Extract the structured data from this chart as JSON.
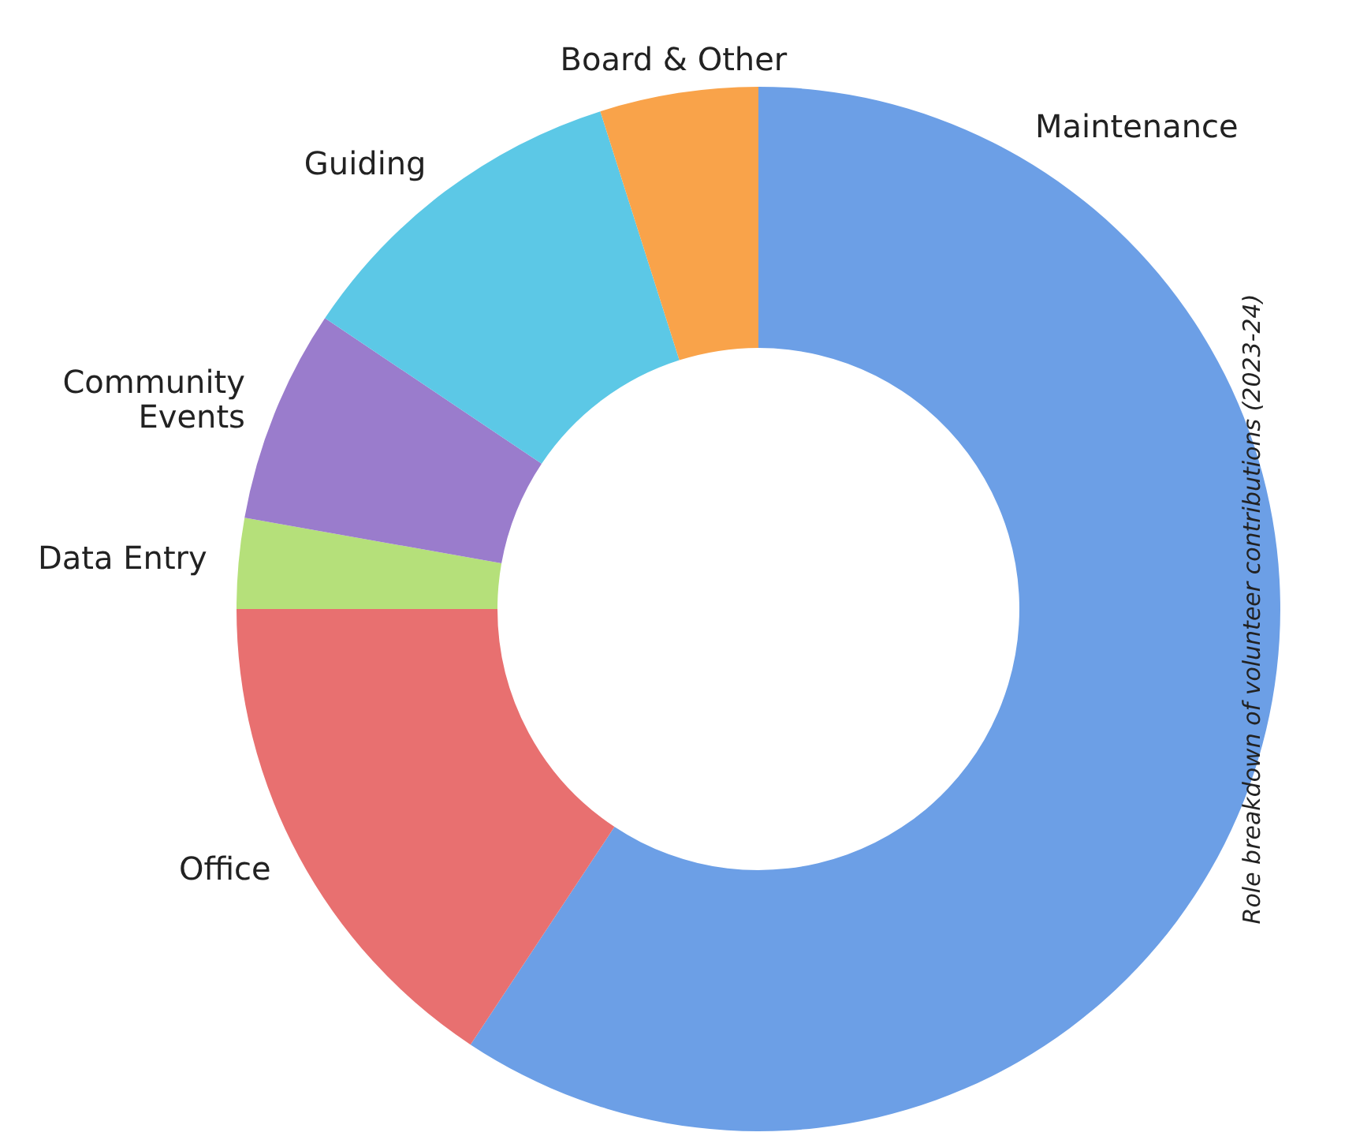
{
  "chart_data": {
    "type": "donut",
    "categories": [
      "Maintenance",
      "Office",
      "Data Entry",
      "Community Events",
      "Guiding",
      "Board & Other"
    ],
    "values": [
      59.3,
      15.7,
      2.8,
      6.6,
      10.7,
      4.9
    ],
    "colors": [
      "#6c9fe6",
      "#e87070",
      "#b5e07a",
      "#9a7ccc",
      "#5cc8e6",
      "#f9a34a"
    ],
    "legend": false,
    "annotations": [
      "Role breakdown of volunteer contributions (2023-24)"
    ]
  }
}
